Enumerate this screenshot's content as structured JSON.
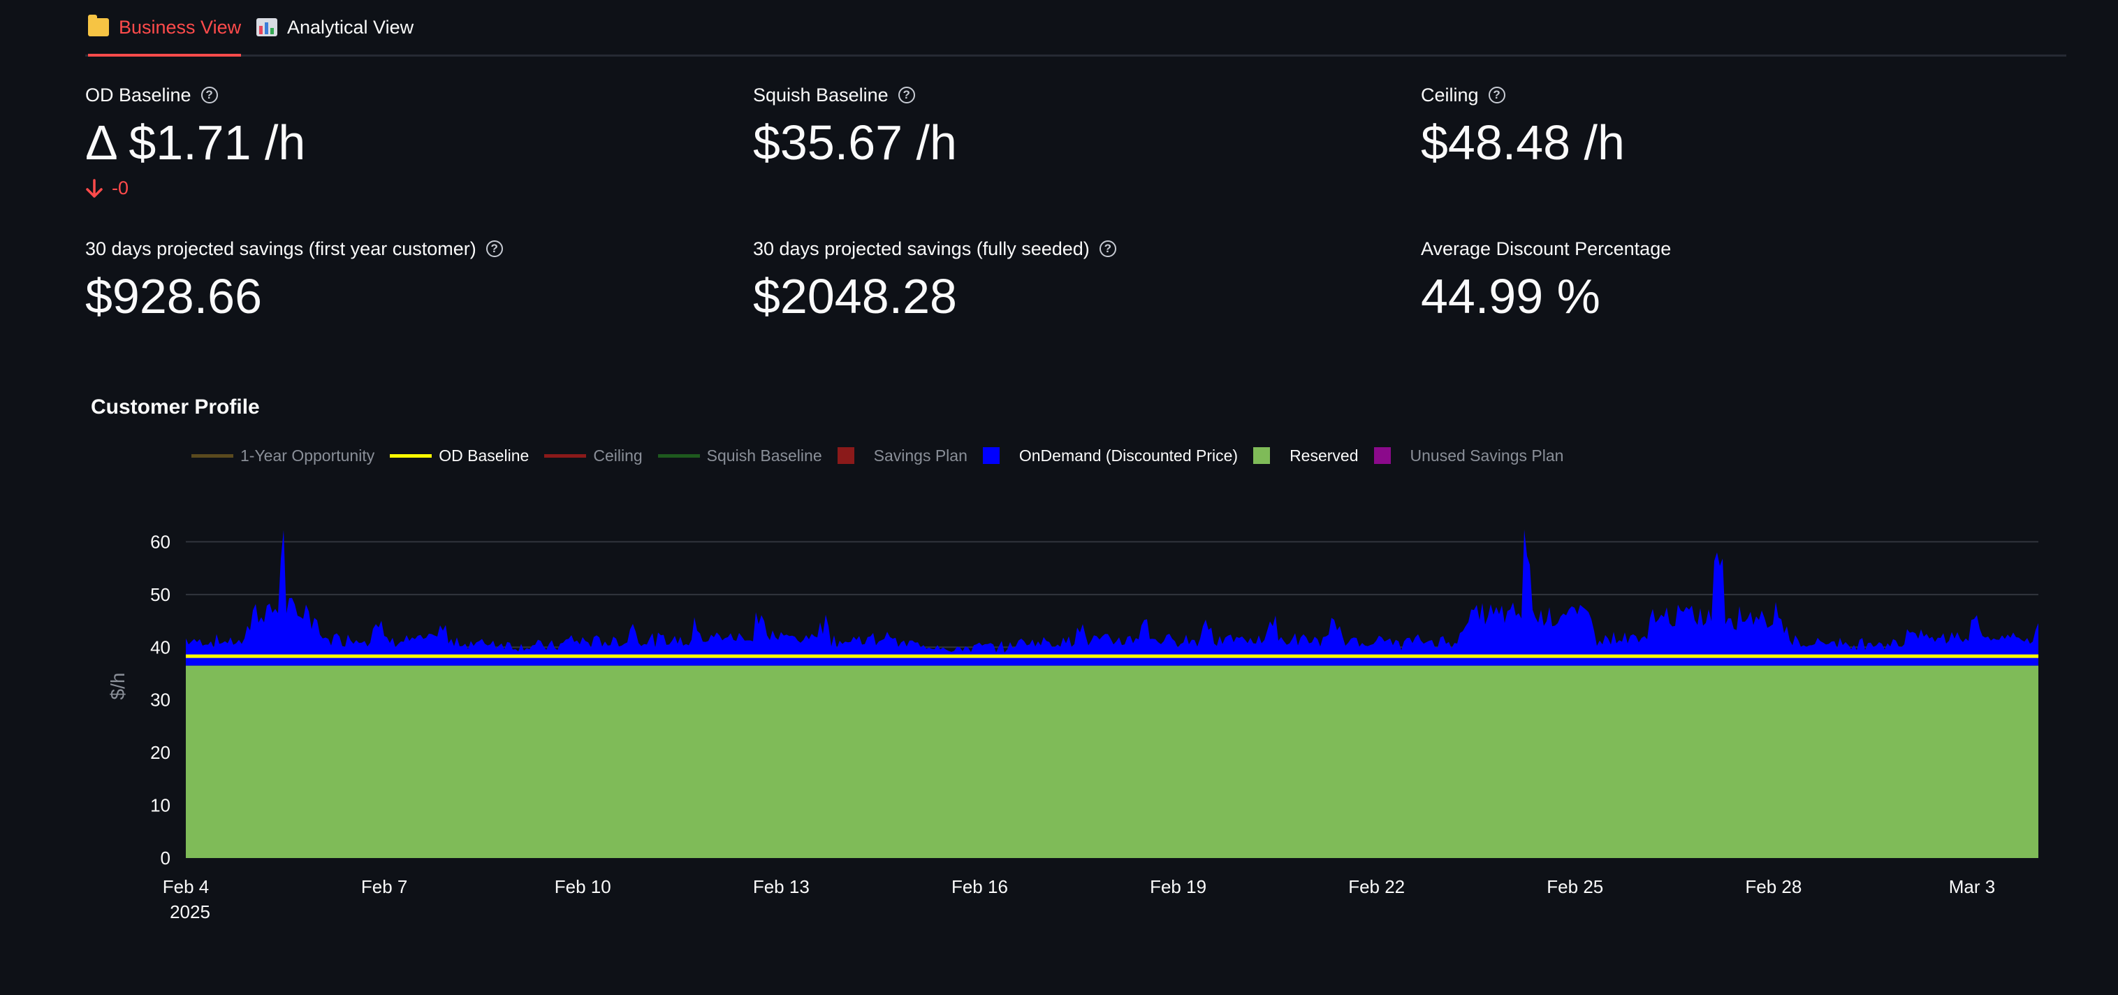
{
  "tabs": [
    {
      "label": "Business View",
      "icon": "folder-icon",
      "active": true
    },
    {
      "label": "Analytical View",
      "icon": "bar-chart-icon",
      "active": false
    }
  ],
  "metrics": {
    "od_baseline": {
      "label": "OD Baseline",
      "value": "Δ $1.71 /h",
      "delta": "-0"
    },
    "squish_baseline": {
      "label": "Squish Baseline",
      "value": "$35.67 /h"
    },
    "ceiling": {
      "label": "Ceiling",
      "value": "$48.48 /h"
    },
    "savings_first_year": {
      "label": "30 days projected savings (first year customer)",
      "value": "$928.66"
    },
    "savings_fully_seeded": {
      "label": "30 days projected savings (fully seeded)",
      "value": "$2048.28"
    },
    "avg_discount": {
      "label": "Average Discount Percentage",
      "value": "44.99 %"
    }
  },
  "colors": {
    "accent": "#ff4b4b",
    "background": "#0e1117",
    "reserved": "#7fbb58",
    "ondemand": "#0000ff",
    "od_baseline": "#ffff00"
  },
  "chart_data": {
    "type": "area",
    "title": "Customer Profile",
    "ylabel": "$/h",
    "xlabel": "",
    "ylim": [
      0,
      70
    ],
    "yticks": [
      0,
      10,
      20,
      30,
      40,
      50,
      60
    ],
    "xticks": [
      "Feb 4",
      "Feb 7",
      "Feb 10",
      "Feb 13",
      "Feb 16",
      "Feb 19",
      "Feb 22",
      "Feb 25",
      "Feb 28",
      "Mar 3"
    ],
    "xtick_year": "2025",
    "x_start": "2025-02-04",
    "x_end": "2025-03-05",
    "grid": true,
    "legend_position": "top-left",
    "legend": [
      {
        "name": "1-Year Opportunity",
        "type": "line",
        "color": "#5a4a1e",
        "visible": false
      },
      {
        "name": "OD Baseline",
        "type": "line",
        "color": "#ffff00",
        "visible": true
      },
      {
        "name": "Ceiling",
        "type": "line",
        "color": "#8b1a1a",
        "visible": false
      },
      {
        "name": "Squish Baseline",
        "type": "line",
        "color": "#1e5a1e",
        "visible": false
      },
      {
        "name": "Savings Plan",
        "type": "square",
        "color": "#8b1a1a",
        "visible": false
      },
      {
        "name": "OnDemand (Discounted Price)",
        "type": "square",
        "color": "#0000ff",
        "visible": true
      },
      {
        "name": "Reserved",
        "type": "square",
        "color": "#7fbb58",
        "visible": true
      },
      {
        "name": "Unused Savings Plan",
        "type": "square",
        "color": "#8b0a8b",
        "visible": false
      }
    ],
    "series": [
      {
        "name": "Reserved",
        "values_constant": 36.5
      },
      {
        "name": "OD Baseline",
        "values_constant": 38.3
      },
      {
        "name": "OnDemand (Discounted Price)",
        "x": [
          "2025-02-04",
          "2025-02-05",
          "2025-02-05T12:00",
          "2025-02-06",
          "2025-02-07",
          "2025-02-08",
          "2025-02-09",
          "2025-02-10",
          "2025-02-11",
          "2025-02-12",
          "2025-02-13",
          "2025-02-14",
          "2025-02-15",
          "2025-02-16",
          "2025-02-17",
          "2025-02-18",
          "2025-02-19",
          "2025-02-20",
          "2025-02-21",
          "2025-02-22",
          "2025-02-23",
          "2025-02-24",
          "2025-02-25",
          "2025-02-26",
          "2025-02-27",
          "2025-02-28",
          "2025-03-01",
          "2025-03-02",
          "2025-03-03",
          "2025-03-04",
          "2025-03-05"
        ],
        "values": [
          41,
          44,
          65,
          46,
          45,
          43,
          40,
          41,
          44,
          45,
          47,
          45,
          42,
          38,
          40,
          44,
          45,
          45,
          45,
          44,
          40,
          44,
          63,
          46,
          46,
          62,
          44,
          39,
          43,
          47,
          43
        ]
      }
    ]
  }
}
